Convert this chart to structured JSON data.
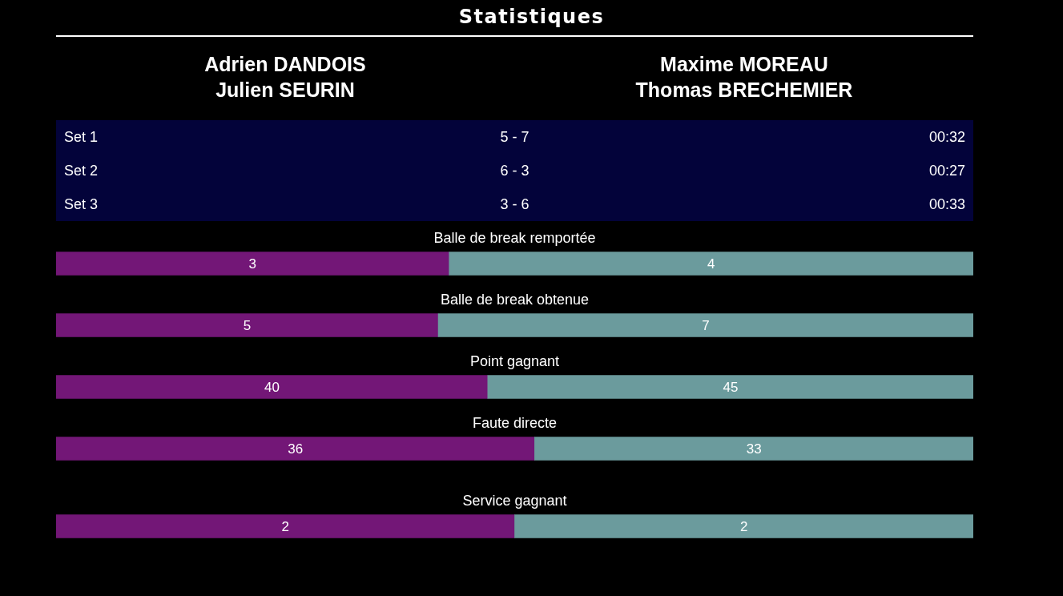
{
  "chart_data": [
    {
      "type": "other",
      "title": "Statistiques",
      "annotations": [
        "Adrien DANDOIS\nJulien SEURIN",
        "Maxime MOREAU\nThomas BRECHEMIER",
        "Set 1",
        "5 - 7",
        "00:32",
        "Set 2",
        "6 - 3",
        "00:27",
        "Set 3",
        "3 - 6",
        "00:33"
      ]
    },
    {
      "type": "bar",
      "orientation": "horizontal",
      "stacked": true,
      "categories": [
        "Balle de break remportée"
      ],
      "xlim": [
        0,
        7
      ],
      "tick_labels": "y",
      "data_labels": true,
      "series": [
        {
          "color": "#731777",
          "values": [
            3
          ]
        },
        {
          "color": "#6b9b9d",
          "values": [
            4
          ]
        }
      ]
    },
    {
      "type": "bar",
      "orientation": "horizontal",
      "stacked": true,
      "categories": [
        "Balle de break obtenue"
      ],
      "xlim": [
        0,
        12
      ],
      "tick_labels": "y",
      "data_labels": true,
      "series": [
        {
          "color": "#731777",
          "values": [
            5
          ]
        },
        {
          "color": "#6b9b9d",
          "values": [
            7
          ]
        }
      ]
    },
    {
      "type": "bar",
      "orientation": "horizontal",
      "stacked": true,
      "categories": [
        "Point gagnant"
      ],
      "xlim": [
        0,
        85
      ],
      "tick_labels": "y",
      "data_labels": true,
      "series": [
        {
          "color": "#731777",
          "values": [
            40
          ]
        },
        {
          "color": "#6b9b9d",
          "values": [
            45
          ]
        }
      ]
    },
    {
      "type": "bar",
      "orientation": "horizontal",
      "stacked": true,
      "categories": [
        "Faute directe"
      ],
      "xlim": [
        0,
        69
      ],
      "tick_labels": "y",
      "data_labels": true,
      "series": [
        {
          "color": "#731777",
          "values": [
            36
          ]
        },
        {
          "color": "#6b9b9d",
          "values": [
            33
          ]
        }
      ]
    },
    {
      "type": "bar",
      "orientation": "horizontal",
      "stacked": true,
      "categories": [
        "Service gagnant"
      ],
      "xlim": [
        0,
        4
      ],
      "tick_labels": "y",
      "data_labels": true,
      "series": [
        {
          "color": "#731777",
          "values": [
            2
          ]
        },
        {
          "color": "#6b9b9d",
          "values": [
            2
          ]
        }
      ]
    }
  ]
}
